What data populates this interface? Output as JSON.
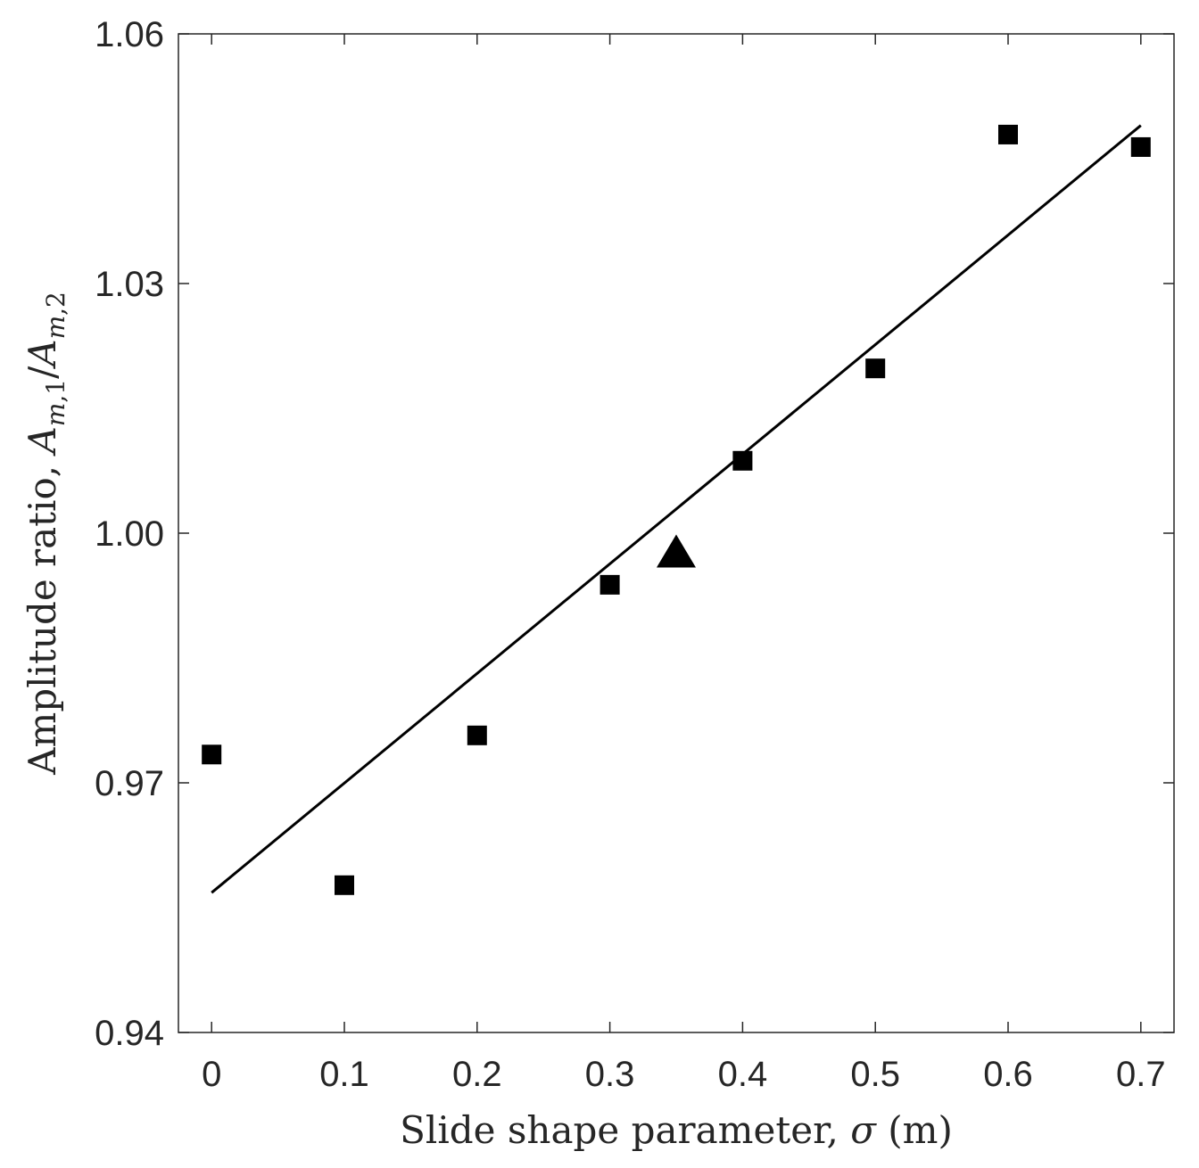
{
  "chart_data": {
    "type": "scatter",
    "xlabel": "Slide shape parameter, σ (m)",
    "ylabel": "Amplitude ratio, A_{m,1}/A_{m,2}",
    "xlim": [
      -0.025,
      0.725
    ],
    "ylim": [
      0.94,
      1.06
    ],
    "xticks": [
      "0",
      "0.1",
      "0.2",
      "0.3",
      "0.4",
      "0.5",
      "0.6",
      "0.7"
    ],
    "xtick_values": [
      0,
      0.1,
      0.2,
      0.3,
      0.4,
      0.5,
      0.6,
      0.7
    ],
    "yticks": [
      "0.94",
      "0.97",
      "1.00",
      "1.03",
      "1.06"
    ],
    "ytick_values": [
      0.94,
      0.97,
      1.0,
      1.03,
      1.06
    ],
    "grid": false,
    "series": [
      {
        "marker": "square",
        "color": "#000000",
        "x": [
          0,
          0.1,
          0.2,
          0.3,
          0.4,
          0.5,
          0.6,
          0.7
        ],
        "y": [
          0.9734,
          0.9577,
          0.9757,
          0.9938,
          1.0087,
          1.0198,
          1.0479,
          1.0464
        ]
      },
      {
        "marker": "triangle",
        "color": "#000000",
        "x": [
          0.35
        ],
        "y": [
          0.9977
        ]
      },
      {
        "marker": "line",
        "color": "#000000",
        "x": [
          0,
          0.7
        ],
        "y": [
          0.9568,
          1.049
        ]
      }
    ]
  }
}
